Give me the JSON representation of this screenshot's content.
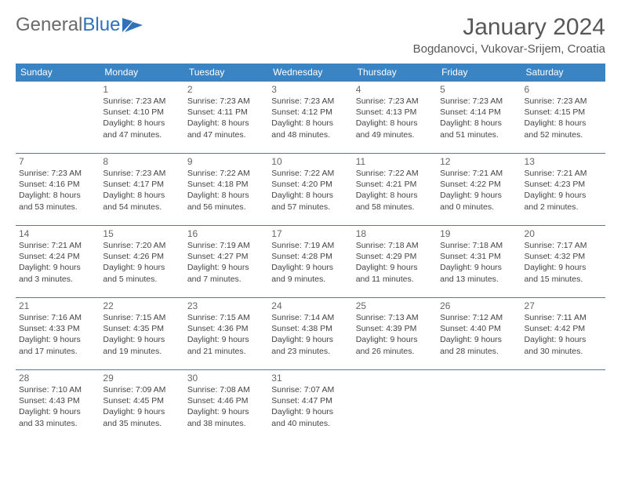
{
  "logo": {
    "text_gray": "General",
    "text_blue": "Blue"
  },
  "title": "January 2024",
  "location": "Bogdanovci, Vukovar-Srijem, Croatia",
  "colors": {
    "header_bg": "#3b84c4",
    "header_text": "#ffffff",
    "row_border": "#4a7aa8",
    "title_color": "#585858",
    "logo_gray": "#6a6a6a",
    "logo_blue": "#2f72b9"
  },
  "day_headers": [
    "Sunday",
    "Monday",
    "Tuesday",
    "Wednesday",
    "Thursday",
    "Friday",
    "Saturday"
  ],
  "weeks": [
    [
      null,
      {
        "n": "1",
        "sr": "Sunrise: 7:23 AM",
        "ss": "Sunset: 4:10 PM",
        "d1": "Daylight: 8 hours",
        "d2": "and 47 minutes."
      },
      {
        "n": "2",
        "sr": "Sunrise: 7:23 AM",
        "ss": "Sunset: 4:11 PM",
        "d1": "Daylight: 8 hours",
        "d2": "and 47 minutes."
      },
      {
        "n": "3",
        "sr": "Sunrise: 7:23 AM",
        "ss": "Sunset: 4:12 PM",
        "d1": "Daylight: 8 hours",
        "d2": "and 48 minutes."
      },
      {
        "n": "4",
        "sr": "Sunrise: 7:23 AM",
        "ss": "Sunset: 4:13 PM",
        "d1": "Daylight: 8 hours",
        "d2": "and 49 minutes."
      },
      {
        "n": "5",
        "sr": "Sunrise: 7:23 AM",
        "ss": "Sunset: 4:14 PM",
        "d1": "Daylight: 8 hours",
        "d2": "and 51 minutes."
      },
      {
        "n": "6",
        "sr": "Sunrise: 7:23 AM",
        "ss": "Sunset: 4:15 PM",
        "d1": "Daylight: 8 hours",
        "d2": "and 52 minutes."
      }
    ],
    [
      {
        "n": "7",
        "sr": "Sunrise: 7:23 AM",
        "ss": "Sunset: 4:16 PM",
        "d1": "Daylight: 8 hours",
        "d2": "and 53 minutes."
      },
      {
        "n": "8",
        "sr": "Sunrise: 7:23 AM",
        "ss": "Sunset: 4:17 PM",
        "d1": "Daylight: 8 hours",
        "d2": "and 54 minutes."
      },
      {
        "n": "9",
        "sr": "Sunrise: 7:22 AM",
        "ss": "Sunset: 4:18 PM",
        "d1": "Daylight: 8 hours",
        "d2": "and 56 minutes."
      },
      {
        "n": "10",
        "sr": "Sunrise: 7:22 AM",
        "ss": "Sunset: 4:20 PM",
        "d1": "Daylight: 8 hours",
        "d2": "and 57 minutes."
      },
      {
        "n": "11",
        "sr": "Sunrise: 7:22 AM",
        "ss": "Sunset: 4:21 PM",
        "d1": "Daylight: 8 hours",
        "d2": "and 58 minutes."
      },
      {
        "n": "12",
        "sr": "Sunrise: 7:21 AM",
        "ss": "Sunset: 4:22 PM",
        "d1": "Daylight: 9 hours",
        "d2": "and 0 minutes."
      },
      {
        "n": "13",
        "sr": "Sunrise: 7:21 AM",
        "ss": "Sunset: 4:23 PM",
        "d1": "Daylight: 9 hours",
        "d2": "and 2 minutes."
      }
    ],
    [
      {
        "n": "14",
        "sr": "Sunrise: 7:21 AM",
        "ss": "Sunset: 4:24 PM",
        "d1": "Daylight: 9 hours",
        "d2": "and 3 minutes."
      },
      {
        "n": "15",
        "sr": "Sunrise: 7:20 AM",
        "ss": "Sunset: 4:26 PM",
        "d1": "Daylight: 9 hours",
        "d2": "and 5 minutes."
      },
      {
        "n": "16",
        "sr": "Sunrise: 7:19 AM",
        "ss": "Sunset: 4:27 PM",
        "d1": "Daylight: 9 hours",
        "d2": "and 7 minutes."
      },
      {
        "n": "17",
        "sr": "Sunrise: 7:19 AM",
        "ss": "Sunset: 4:28 PM",
        "d1": "Daylight: 9 hours",
        "d2": "and 9 minutes."
      },
      {
        "n": "18",
        "sr": "Sunrise: 7:18 AM",
        "ss": "Sunset: 4:29 PM",
        "d1": "Daylight: 9 hours",
        "d2": "and 11 minutes."
      },
      {
        "n": "19",
        "sr": "Sunrise: 7:18 AM",
        "ss": "Sunset: 4:31 PM",
        "d1": "Daylight: 9 hours",
        "d2": "and 13 minutes."
      },
      {
        "n": "20",
        "sr": "Sunrise: 7:17 AM",
        "ss": "Sunset: 4:32 PM",
        "d1": "Daylight: 9 hours",
        "d2": "and 15 minutes."
      }
    ],
    [
      {
        "n": "21",
        "sr": "Sunrise: 7:16 AM",
        "ss": "Sunset: 4:33 PM",
        "d1": "Daylight: 9 hours",
        "d2": "and 17 minutes."
      },
      {
        "n": "22",
        "sr": "Sunrise: 7:15 AM",
        "ss": "Sunset: 4:35 PM",
        "d1": "Daylight: 9 hours",
        "d2": "and 19 minutes."
      },
      {
        "n": "23",
        "sr": "Sunrise: 7:15 AM",
        "ss": "Sunset: 4:36 PM",
        "d1": "Daylight: 9 hours",
        "d2": "and 21 minutes."
      },
      {
        "n": "24",
        "sr": "Sunrise: 7:14 AM",
        "ss": "Sunset: 4:38 PM",
        "d1": "Daylight: 9 hours",
        "d2": "and 23 minutes."
      },
      {
        "n": "25",
        "sr": "Sunrise: 7:13 AM",
        "ss": "Sunset: 4:39 PM",
        "d1": "Daylight: 9 hours",
        "d2": "and 26 minutes."
      },
      {
        "n": "26",
        "sr": "Sunrise: 7:12 AM",
        "ss": "Sunset: 4:40 PM",
        "d1": "Daylight: 9 hours",
        "d2": "and 28 minutes."
      },
      {
        "n": "27",
        "sr": "Sunrise: 7:11 AM",
        "ss": "Sunset: 4:42 PM",
        "d1": "Daylight: 9 hours",
        "d2": "and 30 minutes."
      }
    ],
    [
      {
        "n": "28",
        "sr": "Sunrise: 7:10 AM",
        "ss": "Sunset: 4:43 PM",
        "d1": "Daylight: 9 hours",
        "d2": "and 33 minutes."
      },
      {
        "n": "29",
        "sr": "Sunrise: 7:09 AM",
        "ss": "Sunset: 4:45 PM",
        "d1": "Daylight: 9 hours",
        "d2": "and 35 minutes."
      },
      {
        "n": "30",
        "sr": "Sunrise: 7:08 AM",
        "ss": "Sunset: 4:46 PM",
        "d1": "Daylight: 9 hours",
        "d2": "and 38 minutes."
      },
      {
        "n": "31",
        "sr": "Sunrise: 7:07 AM",
        "ss": "Sunset: 4:47 PM",
        "d1": "Daylight: 9 hours",
        "d2": "and 40 minutes."
      },
      null,
      null,
      null
    ]
  ]
}
